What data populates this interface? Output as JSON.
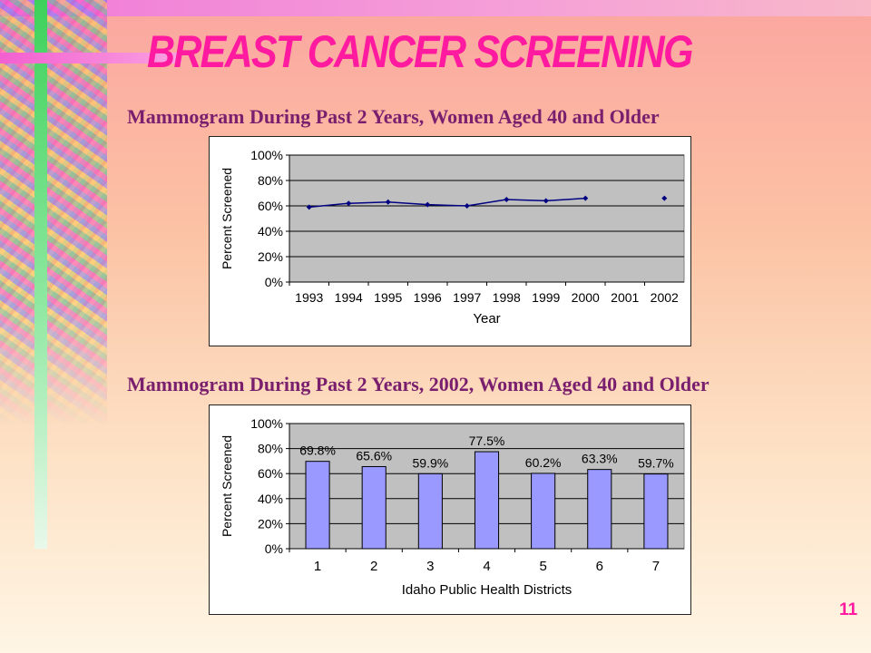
{
  "page": {
    "title": "BREAST CANCER SCREENING",
    "page_number": "11",
    "accent_color": "#ff1aa0",
    "subtitle_color": "#7a1f6e"
  },
  "chart_data": [
    {
      "type": "line",
      "title": "Mammogram During Past 2 Years, Women Aged 40 and Older",
      "xlabel": "Year",
      "ylabel": "Percent Screened",
      "x": [
        "1993",
        "1994",
        "1995",
        "1996",
        "1997",
        "1998",
        "1999",
        "2000",
        "2001",
        "2002"
      ],
      "series": [
        {
          "values": [
            59,
            62,
            63,
            61,
            60,
            65,
            64,
            66,
            null,
            66
          ],
          "color": "#000080"
        }
      ],
      "ylim": [
        0,
        100
      ],
      "yticks": [
        "0%",
        "20%",
        "40%",
        "60%",
        "80%",
        "100%"
      ],
      "grid": true,
      "plot_background": "#c0c0c0",
      "legend": "none"
    },
    {
      "type": "bar",
      "title": "Mammogram During Past 2 Years, 2002, Women Aged 40 and Older",
      "xlabel": "Idaho Public Health Districts",
      "ylabel": "Percent Screened",
      "categories": [
        "1",
        "2",
        "3",
        "4",
        "5",
        "6",
        "7"
      ],
      "values": [
        69.8,
        65.6,
        59.9,
        77.5,
        60.2,
        63.3,
        59.7
      ],
      "data_labels": [
        "69.8%",
        "65.6%",
        "59.9%",
        "77.5%",
        "60.2%",
        "63.3%",
        "59.7%"
      ],
      "ylim": [
        0,
        100
      ],
      "yticks": [
        "0%",
        "20%",
        "40%",
        "60%",
        "80%",
        "100%"
      ],
      "grid": true,
      "bar_color": "#9999ff",
      "plot_background": "#c0c0c0",
      "legend": "none"
    }
  ]
}
